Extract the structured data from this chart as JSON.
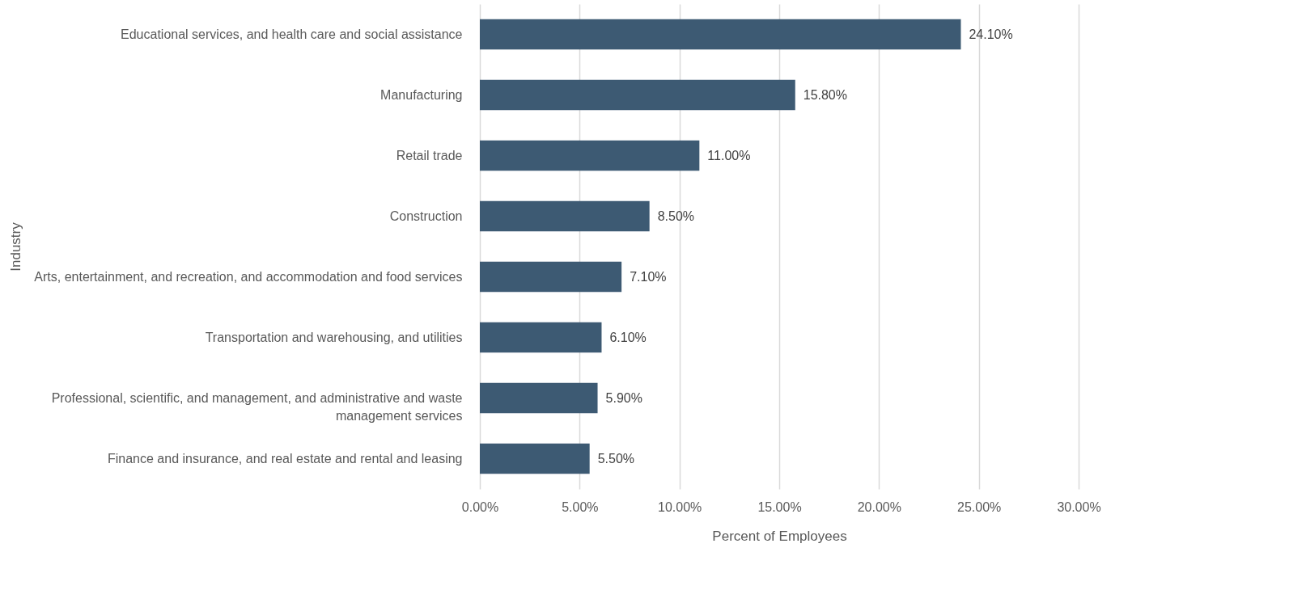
{
  "chart_data": {
    "type": "bar",
    "orientation": "horizontal",
    "xlabel": "Percent of Employees",
    "ylabel": "Industry",
    "categories": [
      "Educational services, and health care and social assistance",
      "Manufacturing",
      "Retail trade",
      "Construction",
      "Arts, entertainment, and recreation, and accommodation and food services",
      "Transportation and warehousing, and utilities",
      "Professional, scientific, and management, and administrative and waste management services",
      "Finance and insurance, and real estate and rental and leasing"
    ],
    "values": [
      24.1,
      15.8,
      11.0,
      8.5,
      7.1,
      6.1,
      5.9,
      5.5
    ],
    "value_labels": [
      "24.10%",
      "15.80%",
      "11.00%",
      "8.50%",
      "7.10%",
      "6.10%",
      "5.90%",
      "5.50%"
    ],
    "color": "#3d5a73",
    "xlim": [
      0,
      30
    ],
    "xticks": [
      {
        "value": 0,
        "label": "0.00%"
      },
      {
        "value": 5,
        "label": "5.00%"
      },
      {
        "value": 10,
        "label": "10.00%"
      },
      {
        "value": 15,
        "label": "15.00%"
      },
      {
        "value": 20,
        "label": "20.00%"
      },
      {
        "value": 25,
        "label": "25.00%"
      },
      {
        "value": 30,
        "label": "30.00%"
      }
    ],
    "grid": "x"
  }
}
